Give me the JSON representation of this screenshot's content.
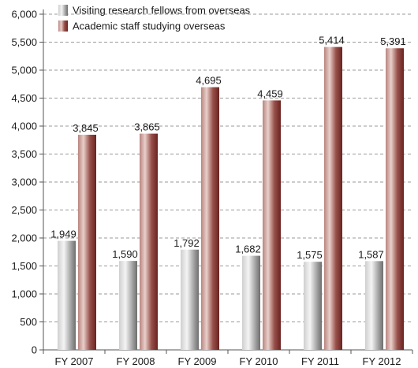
{
  "chart_data": {
    "type": "bar",
    "categories": [
      "FY 2007",
      "FY 2008",
      "FY 2009",
      "FY 2010",
      "FY 2011",
      "FY 2012"
    ],
    "series": [
      {
        "name": "Visiting research fellows from overseas",
        "values": [
          1949,
          1590,
          1792,
          1682,
          1575,
          1587
        ],
        "color": "#9a9a9a"
      },
      {
        "name": "Academic staff studying overseas",
        "values": [
          3845,
          3865,
          4695,
          4459,
          5414,
          5391
        ],
        "color": "#8a3a36"
      }
    ],
    "data_labels": [
      [
        "1,949",
        "1,590",
        "1,792",
        "1,682",
        "1,575",
        "1,587"
      ],
      [
        "3,845",
        "3,865",
        "4,695",
        "4,459",
        "5,414",
        "5,391"
      ]
    ],
    "y_ticks": [
      "0",
      "500",
      "1,000",
      "1,500",
      "2,000",
      "2,500",
      "3,000",
      "3,500",
      "4,000",
      "4,500",
      "5,000",
      "5,500",
      "6,000"
    ],
    "ylim": [
      0,
      6000
    ],
    "y_step": 500,
    "grid": "horizontal dashed",
    "legend_position": "top-left",
    "title": "",
    "xlabel": "",
    "ylabel": ""
  }
}
